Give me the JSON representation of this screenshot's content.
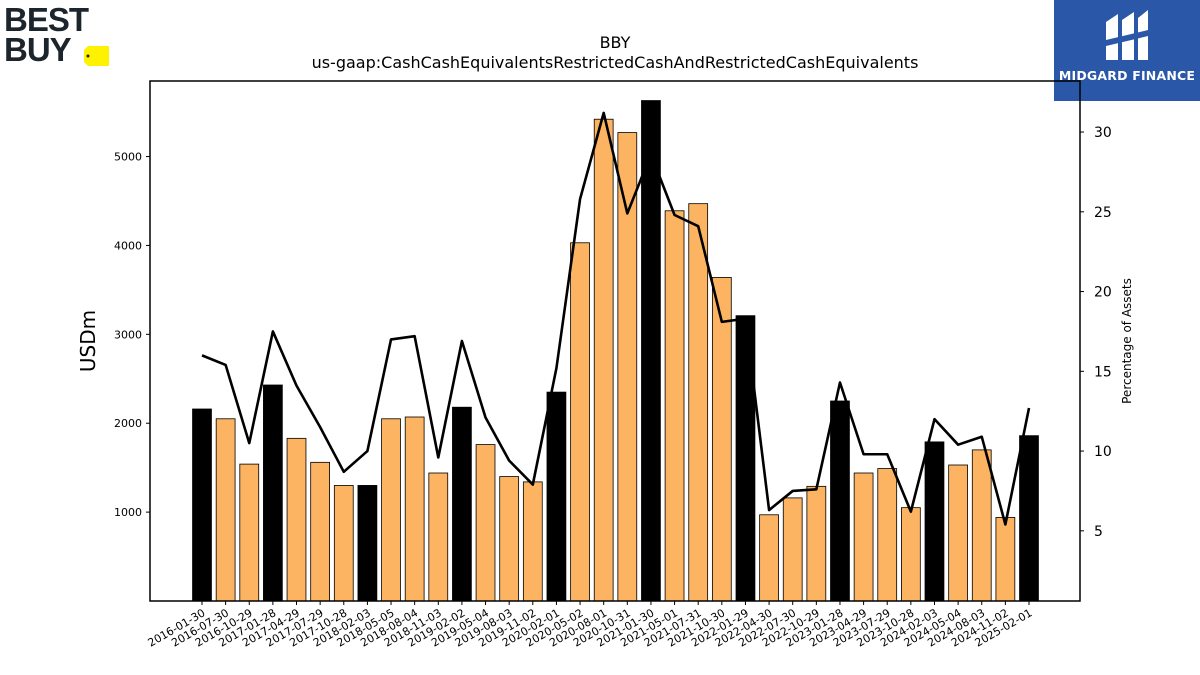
{
  "logos": {
    "left_brand": "BEST BUY",
    "right_brand": "MIDGARD FINANCE"
  },
  "chart_data": {
    "type": "bar",
    "title": "BBY",
    "subtitle": "us-gaap:CashCashEquivalentsRestrictedCashAndRestrictedCashEquivalents",
    "ylabel": "USDm",
    "y2label": "Percentage of Assets",
    "ylim": [
      0,
      5850
    ],
    "y2lim": [
      0.6,
      33.2
    ],
    "yticks": [
      1000,
      2000,
      3000,
      4000,
      5000
    ],
    "y2ticks": [
      5,
      10,
      15,
      20,
      25,
      30
    ],
    "grid": false,
    "categories": [
      "2016-01-30",
      "2016-07-30",
      "2016-10-29",
      "2017-01-28",
      "2017-04-29",
      "2017-07-29",
      "2017-10-28",
      "2018-02-03",
      "2018-05-05",
      "2018-08-04",
      "2018-11-03",
      "2019-02-02",
      "2019-05-04",
      "2019-08-03",
      "2019-11-02",
      "2020-02-01",
      "2020-05-02",
      "2020-08-01",
      "2020-10-31",
      "2021-01-30",
      "2021-05-01",
      "2021-07-31",
      "2021-10-30",
      "2022-01-29",
      "2022-04-30",
      "2022-07-30",
      "2022-10-29",
      "2023-01-28",
      "2023-04-29",
      "2023-07-29",
      "2023-10-28",
      "2024-02-03",
      "2024-05-04",
      "2024-08-03",
      "2024-11-02",
      "2025-02-01"
    ],
    "values": [
      2160,
      2050,
      1540,
      2430,
      1830,
      1560,
      1300,
      1300,
      2050,
      2070,
      1440,
      2180,
      1760,
      1400,
      1340,
      2350,
      4030,
      5420,
      5270,
      5630,
      4390,
      4470,
      3640,
      3210,
      970,
      1160,
      1290,
      2250,
      1440,
      1490,
      1050,
      1790,
      1530,
      1700,
      940,
      1860
    ],
    "fiscal_year_end": [
      true,
      false,
      false,
      true,
      false,
      false,
      false,
      true,
      false,
      false,
      false,
      true,
      false,
      false,
      false,
      true,
      false,
      false,
      false,
      true,
      false,
      false,
      false,
      true,
      false,
      false,
      false,
      true,
      false,
      false,
      false,
      true,
      false,
      false,
      false,
      true
    ],
    "colors": {
      "year_end": "#000000",
      "quarter": "#fdb462",
      "line": "#000000"
    },
    "series": [
      {
        "name": "",
        "axis": "right",
        "type": "line",
        "values": [
          16.0,
          15.4,
          10.5,
          17.5,
          14.1,
          11.5,
          8.7,
          10.0,
          17.0,
          17.2,
          9.6,
          16.9,
          12.1,
          9.4,
          7.9,
          15.2,
          25.8,
          31.2,
          24.9,
          28.6,
          24.8,
          24.1,
          18.1,
          18.3,
          6.3,
          7.5,
          7.6,
          14.3,
          9.8,
          9.8,
          6.2,
          12.0,
          10.4,
          10.9,
          5.4,
          12.7
        ]
      }
    ]
  }
}
